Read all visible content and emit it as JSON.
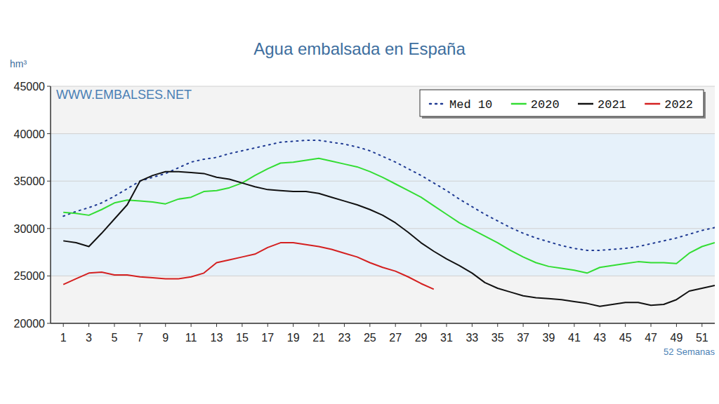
{
  "chart_data": {
    "type": "line",
    "title": "Agua embalsada en España",
    "y_label": "hm³",
    "x_label": "52 Semanas",
    "annotation": "WWW.EMBALSES.NET",
    "x": [
      1,
      2,
      3,
      4,
      5,
      6,
      7,
      8,
      9,
      10,
      11,
      12,
      13,
      14,
      15,
      16,
      17,
      18,
      19,
      20,
      21,
      22,
      23,
      24,
      25,
      26,
      27,
      28,
      29,
      30,
      31,
      32,
      33,
      34,
      35,
      36,
      37,
      38,
      39,
      40,
      41,
      42,
      43,
      44,
      45,
      46,
      47,
      48,
      49,
      50,
      51,
      52
    ],
    "xlim": [
      0,
      52
    ],
    "xticks": [
      1,
      3,
      5,
      7,
      9,
      11,
      13,
      15,
      17,
      19,
      21,
      23,
      25,
      27,
      29,
      31,
      33,
      35,
      37,
      39,
      41,
      43,
      45,
      47,
      49,
      51
    ],
    "ylim": [
      20000,
      45000
    ],
    "yticks": [
      20000,
      25000,
      30000,
      35000,
      40000,
      45000
    ],
    "grid": true,
    "legend": "top-right",
    "series": [
      {
        "name": "Med 10",
        "color": "#1f3a93",
        "line_style": "dotted",
        "values": [
          31300,
          31800,
          32200,
          32700,
          33400,
          34200,
          35000,
          35400,
          35800,
          36400,
          37000,
          37300,
          37500,
          37900,
          38200,
          38500,
          38800,
          39100,
          39200,
          39300,
          39300,
          39100,
          38900,
          38600,
          38200,
          37600,
          37000,
          36300,
          35600,
          34800,
          34000,
          33100,
          32300,
          31500,
          30800,
          30100,
          29500,
          29000,
          28600,
          28200,
          27900,
          27700,
          27700,
          27800,
          27900,
          28100,
          28400,
          28700,
          29000,
          29400,
          29800,
          30100
        ]
      },
      {
        "name": "2020",
        "color": "#33dd33",
        "line_style": "solid",
        "values": [
          31700,
          31600,
          31400,
          32000,
          32700,
          33000,
          32900,
          32800,
          32600,
          33100,
          33300,
          33900,
          34000,
          34300,
          34800,
          35600,
          36300,
          36900,
          37000,
          37200,
          37400,
          37100,
          36800,
          36500,
          36000,
          35400,
          34700,
          34000,
          33300,
          32400,
          31500,
          30600,
          29900,
          29200,
          28500,
          27700,
          27000,
          26400,
          26000,
          25800,
          25600,
          25300,
          25900,
          26100,
          26300,
          26500,
          26400,
          26400,
          26300,
          27400,
          28100,
          28500
        ]
      },
      {
        "name": "2021",
        "color": "#111111",
        "line_style": "solid",
        "values": [
          28700,
          28500,
          28100,
          29500,
          31000,
          32500,
          35000,
          35600,
          36000,
          36000,
          35900,
          35800,
          35400,
          35200,
          34800,
          34400,
          34100,
          34000,
          33900,
          33900,
          33700,
          33300,
          32900,
          32500,
          32000,
          31400,
          30600,
          29600,
          28500,
          27600,
          26800,
          26100,
          25300,
          24300,
          23700,
          23300,
          22900,
          22700,
          22600,
          22500,
          22300,
          22100,
          21800,
          22000,
          22200,
          22200,
          21900,
          22000,
          22500,
          23400,
          23700,
          24000
        ]
      },
      {
        "name": "2022",
        "color": "#d42020",
        "line_style": "solid",
        "values": [
          24100,
          24700,
          25300,
          25400,
          25100,
          25100,
          24900,
          24800,
          24700,
          24700,
          24900,
          25300,
          26400,
          26700,
          27000,
          27300,
          28000,
          28500,
          28500,
          28300,
          28100,
          27800,
          27400,
          27000,
          26400,
          25900,
          25500,
          24900,
          24200,
          23600,
          null,
          null,
          null,
          null,
          null,
          null,
          null,
          null,
          null,
          null,
          null,
          null,
          null,
          null,
          null,
          null,
          null,
          null,
          null,
          null,
          null,
          null
        ]
      }
    ]
  }
}
